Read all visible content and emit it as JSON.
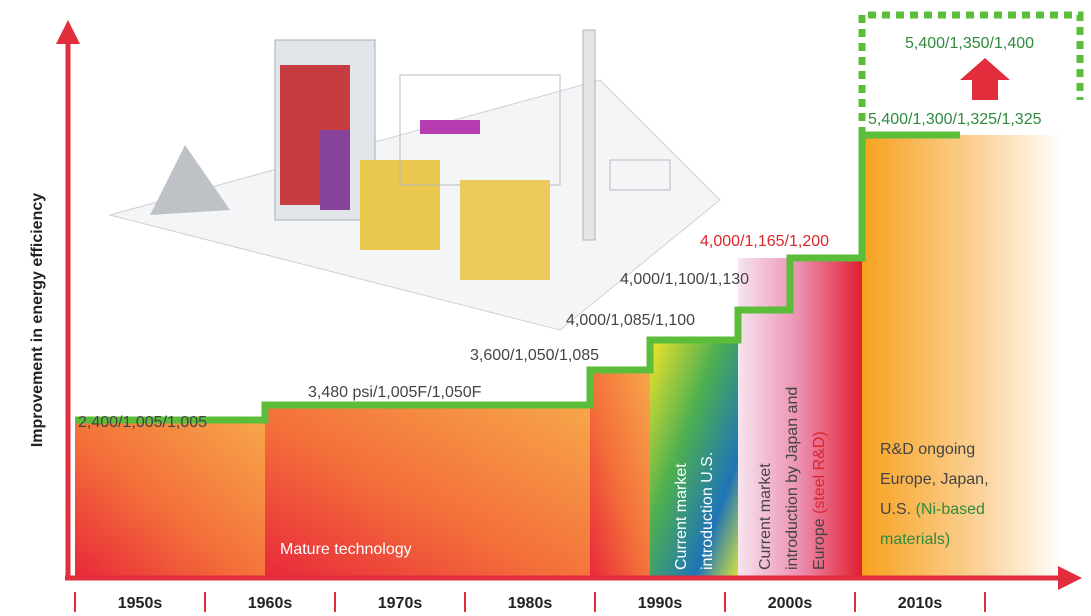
{
  "y_axis_label": "Improvement in energy efficiency",
  "decades": [
    "1950s",
    "1960s",
    "1970s",
    "1980s",
    "1990s",
    "2000s",
    "2010s"
  ],
  "steps": [
    "2,400/1,005/1,005",
    "3,480 psi/1,005F/1,050F",
    "3,600/1,050/1,085",
    "4,000/1,085/1,100",
    "4,000/1,100/1,130",
    "4,000/1,165/1,200",
    "5,400/1,300/1,325/1,325"
  ],
  "target": "5,400/1,350/1,400",
  "regions": {
    "mature": "Mature technology",
    "us": [
      "Current market",
      "introduction U.S."
    ],
    "japan_europe": {
      "lines": [
        "Current market",
        "introduction by Japan and",
        "Europe"
      ],
      "highlight": "(steel R&D)"
    },
    "rnd": {
      "lines": [
        "R&D ongoing",
        "Europe, Japan,",
        "U.S."
      ],
      "highlight": [
        "(Ni-based",
        "materials)"
      ]
    }
  }
}
